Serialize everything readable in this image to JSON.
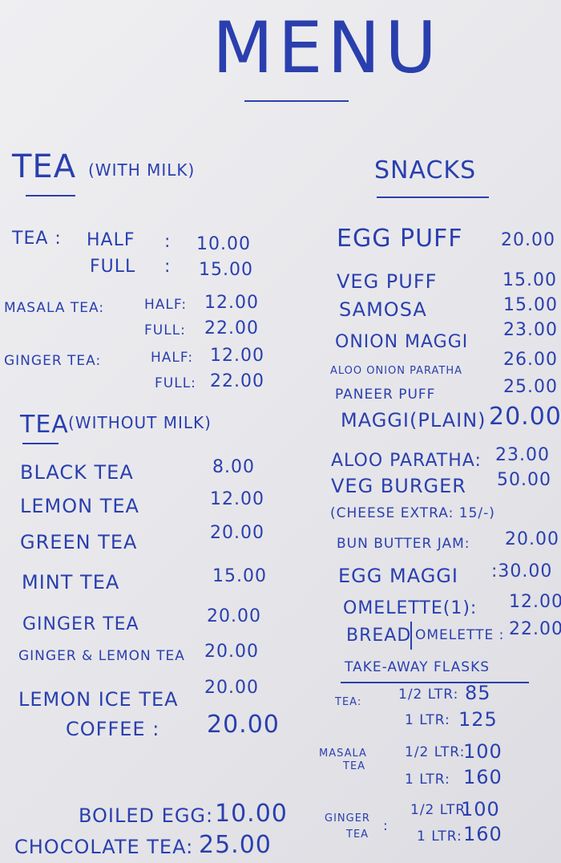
{
  "title": "MENU",
  "tea_with_milk": {
    "heading": "TEA",
    "note": "(WITH MILK)",
    "items": [
      {
        "name": "TEA :",
        "size": "HALF",
        "sep": ":",
        "price": "10.00"
      },
      {
        "name": "",
        "size": "FULL",
        "sep": ":",
        "price": "15.00"
      },
      {
        "name": "MASALA TEA:",
        "size": "HALF:",
        "price": "12.00"
      },
      {
        "name": "",
        "size": "FULL:",
        "price": "22.00"
      },
      {
        "name": "GINGER TEA:",
        "size": "HALF:",
        "price": "12.00"
      },
      {
        "name": "",
        "size": "FULL:",
        "price": "22.00"
      }
    ]
  },
  "tea_without_milk": {
    "heading": "TEA",
    "note": "(WITHOUT MILK)",
    "items": [
      {
        "name": "BLACK TEA",
        "price": "8.00"
      },
      {
        "name": "LEMON TEA",
        "price": "12.00"
      },
      {
        "name": "GREEN TEA",
        "price": "20.00"
      },
      {
        "name": "MINT TEA",
        "price": "15.00"
      },
      {
        "name": "GINGER TEA",
        "price": "20.00"
      },
      {
        "name": "GINGER & LEMON TEA",
        "price": "20.00"
      },
      {
        "name": "LEMON ICE TEA",
        "price": "20.00"
      },
      {
        "name": "COFFEE :",
        "price": "20.00"
      },
      {
        "name": "BOILED EGG:",
        "price": "10.00"
      },
      {
        "name": "CHOCOLATE TEA:",
        "price": "25.00"
      }
    ]
  },
  "snacks": {
    "heading": "SNACKS",
    "items": [
      {
        "name": "EGG PUFF",
        "price": "20.00"
      },
      {
        "name": "VEG PUFF",
        "price": "15.00"
      },
      {
        "name": "SAMOSA",
        "price": "15.00"
      },
      {
        "name": "ONION MAGGI",
        "price": "23.00"
      },
      {
        "name": "ALOO ONION PARATHA",
        "price": "26.00"
      },
      {
        "name": "PANEER PUFF",
        "price": "25.00"
      },
      {
        "name": "MAGGI(PLAIN)",
        "price": "20.00"
      },
      {
        "name": "ALOO PARATHA:",
        "price": "23.00"
      },
      {
        "name": "VEG BURGER",
        "price": "50.00"
      },
      {
        "name": "(CHEESE EXTRA: 15/-)",
        "price": ""
      },
      {
        "name": "BUN BUTTER JAM:",
        "price": "20.00"
      },
      {
        "name": "EGG MAGGI",
        "price": ":30.00"
      },
      {
        "name": "OMELETTE(1):",
        "price": "12.00"
      },
      {
        "name": "BREAD",
        "price": ""
      },
      {
        "name": "OMELETTE :",
        "price": "22.00"
      }
    ]
  },
  "flasks": {
    "heading": "TAKE-AWAY FLASKS",
    "groups": [
      {
        "name": "TEA:",
        "rows": [
          {
            "size": "1/2 LTR:",
            "price": "85"
          },
          {
            "size": "1 LTR:",
            "price": "125"
          }
        ]
      },
      {
        "name": "MASALA",
        "name2": "TEA",
        "rows": [
          {
            "size": "1/2 LTR:",
            "price": "100"
          },
          {
            "size": "1 LTR:",
            "price": "160"
          }
        ]
      },
      {
        "name": "GINGER",
        "name2": "TEA",
        "sep": ":",
        "rows": [
          {
            "size": "1/2 LTR:",
            "price": "100"
          },
          {
            "size": "1 LTR:",
            "price": "160"
          }
        ]
      }
    ]
  }
}
